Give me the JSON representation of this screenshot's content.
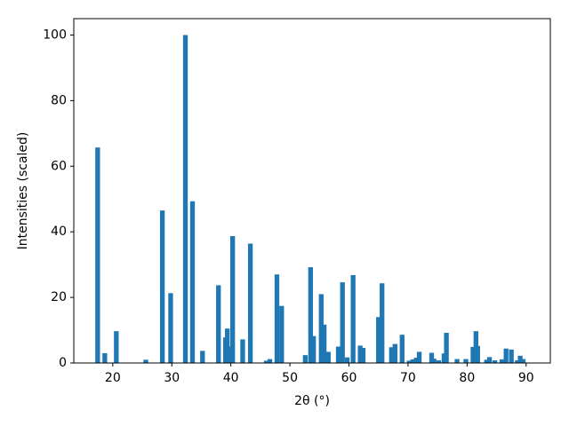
{
  "chart_data": {
    "type": "bar",
    "xlabel": "2θ (°)",
    "ylabel": "Intensities (scaled)",
    "color": "#1f77b4",
    "x": [
      17.44,
      18.65,
      20.6,
      25.6,
      28.4,
      29.8,
      32.3,
      33.5,
      35.2,
      37.9,
      39.1,
      39.4,
      40.0,
      40.3,
      42.0,
      43.3,
      46.0,
      46.6,
      47.8,
      48.6,
      52.6,
      53.5,
      54.0,
      55.3,
      55.8,
      56.5,
      58.2,
      58.9,
      59.7,
      60.7,
      61.9,
      62.4,
      65.0,
      65.6,
      67.2,
      67.8,
      69.0,
      70.2,
      70.8,
      71.4,
      71.9,
      74.0,
      74.4,
      75.2,
      76.1,
      76.5,
      78.3,
      79.8,
      81.0,
      81.5,
      81.8,
      83.3,
      83.8,
      84.7,
      85.9,
      86.6,
      87.5,
      88.5,
      89.0,
      89.5
    ],
    "values": [
      65.7,
      3,
      9.7,
      1,
      46.5,
      21.3,
      100,
      49.3,
      3.7,
      23.7,
      7.8,
      10.5,
      5,
      38.7,
      7.2,
      36.4,
      0.7,
      1.2,
      27,
      17.4,
      2.4,
      29.2,
      8.2,
      21,
      11.7,
      3.4,
      5,
      24.6,
      1.7,
      26.8,
      5.3,
      4.6,
      14,
      24.3,
      4.8,
      5.8,
      8.6,
      0.7,
      1.1,
      1.6,
      3.4,
      3.1,
      1.3,
      0.8,
      2.9,
      9.2,
      1.2,
      1.2,
      4.9,
      9.7,
      5.2,
      1,
      1.8,
      0.8,
      1.1,
      4.4,
      4.1,
      0.8,
      2.2,
      1.2
    ],
    "xlim": [
      13.4,
      94.1
    ],
    "xticks": [
      20,
      30,
      40,
      50,
      60,
      70,
      80,
      90
    ],
    "ylim": [
      0,
      105
    ],
    "yticks": [
      0,
      20,
      40,
      60,
      80,
      100
    ]
  }
}
